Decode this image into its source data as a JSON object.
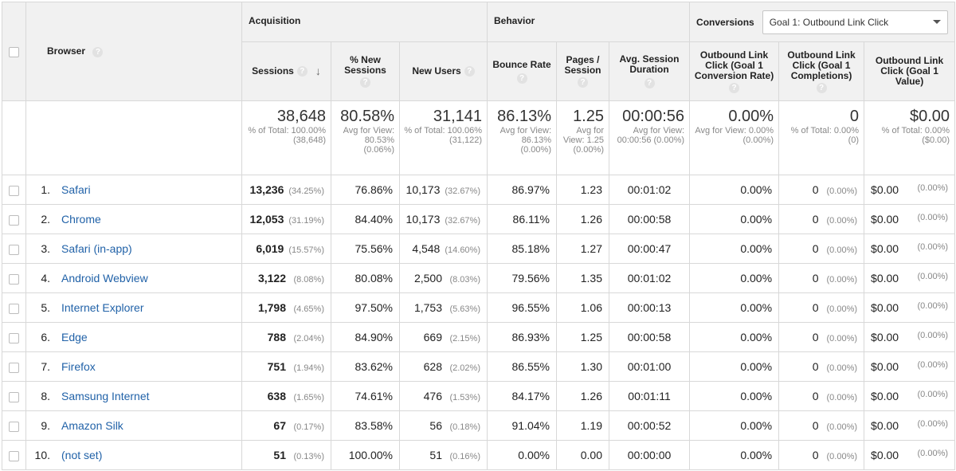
{
  "groups": {
    "acquisition": "Acquisition",
    "behavior": "Behavior",
    "conversions": "Conversions",
    "goal_select": "Goal 1: Outbound Link Click"
  },
  "columns": {
    "browser": "Browser",
    "sessions": "Sessions",
    "pct_new_sessions": "% New Sessions",
    "new_users": "New Users",
    "bounce_rate": "Bounce Rate",
    "pages_session": "Pages / Session",
    "avg_session": "Avg. Session Duration",
    "conv_rate": "Outbound Link Click (Goal 1 Conversion Rate)",
    "completions": "Outbound Link Click (Goal 1 Completions)",
    "value": "Outbound Link Click (Goal 1 Value)"
  },
  "help_icon": "question-mark-icon",
  "sort_icon": "arrow-down-icon",
  "totals": {
    "sessions": {
      "value": "38,648",
      "sub": "% of Total: 100.00% (38,648)"
    },
    "pct_new_sessions": {
      "value": "80.58%",
      "sub": "Avg for View: 80.53% (0.06%)"
    },
    "new_users": {
      "value": "31,141",
      "sub": "% of Total: 100.06% (31,122)"
    },
    "bounce_rate": {
      "value": "86.13%",
      "sub": "Avg for View: 86.13% (0.00%)"
    },
    "pages_session": {
      "value": "1.25",
      "sub": "Avg for View: 1.25 (0.00%)"
    },
    "avg_session": {
      "value": "00:00:56",
      "sub": "Avg for View: 00:00:56 (0.00%)"
    },
    "conv_rate": {
      "value": "0.00%",
      "sub": "Avg for View: 0.00% (0.00%)"
    },
    "completions": {
      "value": "0",
      "sub": "% of Total: 0.00% (0)"
    },
    "value": {
      "value": "$0.00",
      "sub": "% of Total: 0.00% ($0.00)"
    }
  },
  "rows": [
    {
      "idx": "1.",
      "browser": "Safari",
      "sessions": "13,236",
      "sessions_pct": "(34.25%)",
      "pct_new": "76.86%",
      "new_users": "10,173",
      "new_users_pct": "(32.67%)",
      "bounce": "86.97%",
      "pages": "1.23",
      "duration": "00:01:02",
      "conv_rate": "0.00%",
      "completions": "0",
      "completions_pct": "(0.00%)",
      "value": "$0.00",
      "value_pct": "(0.00%)"
    },
    {
      "idx": "2.",
      "browser": "Chrome",
      "sessions": "12,053",
      "sessions_pct": "(31.19%)",
      "pct_new": "84.40%",
      "new_users": "10,173",
      "new_users_pct": "(32.67%)",
      "bounce": "86.11%",
      "pages": "1.26",
      "duration": "00:00:58",
      "conv_rate": "0.00%",
      "completions": "0",
      "completions_pct": "(0.00%)",
      "value": "$0.00",
      "value_pct": "(0.00%)"
    },
    {
      "idx": "3.",
      "browser": "Safari (in-app)",
      "sessions": "6,019",
      "sessions_pct": "(15.57%)",
      "pct_new": "75.56%",
      "new_users": "4,548",
      "new_users_pct": "(14.60%)",
      "bounce": "85.18%",
      "pages": "1.27",
      "duration": "00:00:47",
      "conv_rate": "0.00%",
      "completions": "0",
      "completions_pct": "(0.00%)",
      "value": "$0.00",
      "value_pct": "(0.00%)"
    },
    {
      "idx": "4.",
      "browser": "Android Webview",
      "sessions": "3,122",
      "sessions_pct": "(8.08%)",
      "pct_new": "80.08%",
      "new_users": "2,500",
      "new_users_pct": "(8.03%)",
      "bounce": "79.56%",
      "pages": "1.35",
      "duration": "00:01:02",
      "conv_rate": "0.00%",
      "completions": "0",
      "completions_pct": "(0.00%)",
      "value": "$0.00",
      "value_pct": "(0.00%)"
    },
    {
      "idx": "5.",
      "browser": "Internet Explorer",
      "sessions": "1,798",
      "sessions_pct": "(4.65%)",
      "pct_new": "97.50%",
      "new_users": "1,753",
      "new_users_pct": "(5.63%)",
      "bounce": "96.55%",
      "pages": "1.06",
      "duration": "00:00:13",
      "conv_rate": "0.00%",
      "completions": "0",
      "completions_pct": "(0.00%)",
      "value": "$0.00",
      "value_pct": "(0.00%)"
    },
    {
      "idx": "6.",
      "browser": "Edge",
      "sessions": "788",
      "sessions_pct": "(2.04%)",
      "pct_new": "84.90%",
      "new_users": "669",
      "new_users_pct": "(2.15%)",
      "bounce": "86.93%",
      "pages": "1.25",
      "duration": "00:00:58",
      "conv_rate": "0.00%",
      "completions": "0",
      "completions_pct": "(0.00%)",
      "value": "$0.00",
      "value_pct": "(0.00%)"
    },
    {
      "idx": "7.",
      "browser": "Firefox",
      "sessions": "751",
      "sessions_pct": "(1.94%)",
      "pct_new": "83.62%",
      "new_users": "628",
      "new_users_pct": "(2.02%)",
      "bounce": "86.55%",
      "pages": "1.30",
      "duration": "00:01:00",
      "conv_rate": "0.00%",
      "completions": "0",
      "completions_pct": "(0.00%)",
      "value": "$0.00",
      "value_pct": "(0.00%)"
    },
    {
      "idx": "8.",
      "browser": "Samsung Internet",
      "sessions": "638",
      "sessions_pct": "(1.65%)",
      "pct_new": "74.61%",
      "new_users": "476",
      "new_users_pct": "(1.53%)",
      "bounce": "84.17%",
      "pages": "1.26",
      "duration": "00:01:11",
      "conv_rate": "0.00%",
      "completions": "0",
      "completions_pct": "(0.00%)",
      "value": "$0.00",
      "value_pct": "(0.00%)"
    },
    {
      "idx": "9.",
      "browser": "Amazon Silk",
      "sessions": "67",
      "sessions_pct": "(0.17%)",
      "pct_new": "83.58%",
      "new_users": "56",
      "new_users_pct": "(0.18%)",
      "bounce": "91.04%",
      "pages": "1.19",
      "duration": "00:00:52",
      "conv_rate": "0.00%",
      "completions": "0",
      "completions_pct": "(0.00%)",
      "value": "$0.00",
      "value_pct": "(0.00%)"
    },
    {
      "idx": "10.",
      "browser": "(not set)",
      "sessions": "51",
      "sessions_pct": "(0.13%)",
      "pct_new": "100.00%",
      "new_users": "51",
      "new_users_pct": "(0.16%)",
      "bounce": "0.00%",
      "pages": "0.00",
      "duration": "00:00:00",
      "conv_rate": "0.00%",
      "completions": "0",
      "completions_pct": "(0.00%)",
      "value": "$0.00",
      "value_pct": "(0.00%)"
    }
  ],
  "colors": {
    "header_bg": "#f1f1f1",
    "border": "#d8d8d8",
    "link": "#2162a8",
    "muted": "#888888"
  }
}
